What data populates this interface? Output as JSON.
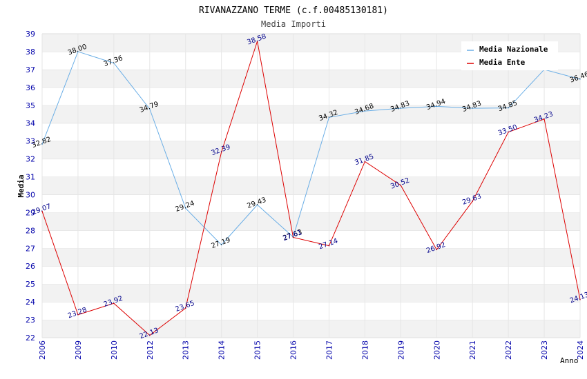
{
  "chart_data": {
    "type": "line",
    "title": "RIVANAZZANO TERME (c.f.00485130181)",
    "subtitle": "Media Importi",
    "xlabel": "Anno",
    "ylabel": "Media",
    "ylim": [
      22,
      39
    ],
    "yticks": [
      "22",
      "23",
      "24",
      "25",
      "26",
      "27",
      "28",
      "29",
      "30",
      "31",
      "32",
      "33",
      "34",
      "35",
      "36",
      "37",
      "38",
      "39"
    ],
    "categories": [
      "2006",
      "2009",
      "2010",
      "2012",
      "2013",
      "2014",
      "2015",
      "2016",
      "2017",
      "2018",
      "2019",
      "2020",
      "2021",
      "2022",
      "2023",
      "2024"
    ],
    "legend_position": "top-right",
    "grid": true,
    "series": [
      {
        "name": "Media Nazionale",
        "color": "#6aaee6",
        "values": [
          32.82,
          38.0,
          37.36,
          34.79,
          29.24,
          27.19,
          29.43,
          27.63,
          34.32,
          34.68,
          34.83,
          34.94,
          34.83,
          34.85,
          37.0,
          36.46
        ],
        "labels": [
          "32.82",
          "38.00",
          "37.36",
          "34.79",
          "29.24",
          "27.19",
          "29.43",
          "27.63",
          "34.32",
          "34.68",
          "34.83",
          "34.94",
          "34.83",
          "34.85",
          "",
          "36.46"
        ]
      },
      {
        "name": "Media Ente",
        "color": "#dd0000",
        "values": [
          29.07,
          23.28,
          23.92,
          22.13,
          23.65,
          32.39,
          38.58,
          27.61,
          27.14,
          31.85,
          30.52,
          26.92,
          29.63,
          33.5,
          34.23,
          24.13
        ],
        "labels": [
          "29.07",
          "23.28",
          "23.92",
          "22.13",
          "23.65",
          "32.39",
          "38.58",
          "27.61",
          "27.14",
          "31.85",
          "30.52",
          "26.92",
          "29.63",
          "33.50",
          "34.23",
          "24.13"
        ]
      }
    ]
  }
}
